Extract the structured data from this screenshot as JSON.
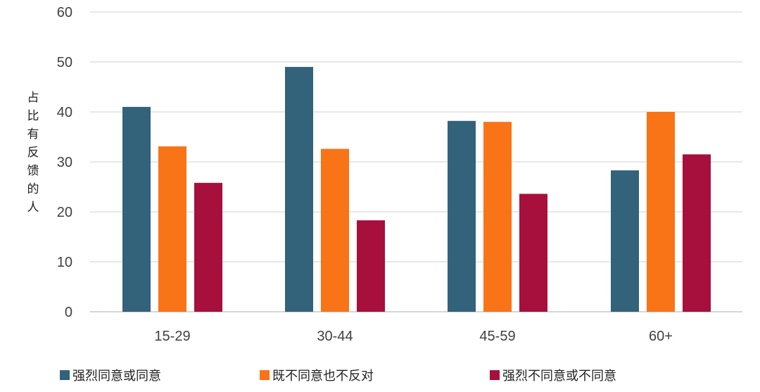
{
  "chart_data": {
    "type": "bar",
    "title": "",
    "xlabel": "",
    "ylabel": "占比有反馈的人",
    "categories": [
      "15-29",
      "30-44",
      "45-59",
      "60+"
    ],
    "series": [
      {
        "name": "强烈同意或同意",
        "values": [
          41,
          49,
          38.2,
          28.3
        ],
        "color": "#33627b"
      },
      {
        "name": "既不同意也不反对",
        "values": [
          33.1,
          32.6,
          38,
          40
        ],
        "color": "#f97317"
      },
      {
        "name": "强烈不同意或不同意",
        "values": [
          25.8,
          18.3,
          23.6,
          31.5
        ],
        "color": "#a70f3c"
      }
    ],
    "ylim": [
      0,
      60
    ],
    "yticks": [
      0,
      10,
      20,
      30,
      40,
      50,
      60
    ],
    "grid": true,
    "legend_position": "bottom"
  }
}
